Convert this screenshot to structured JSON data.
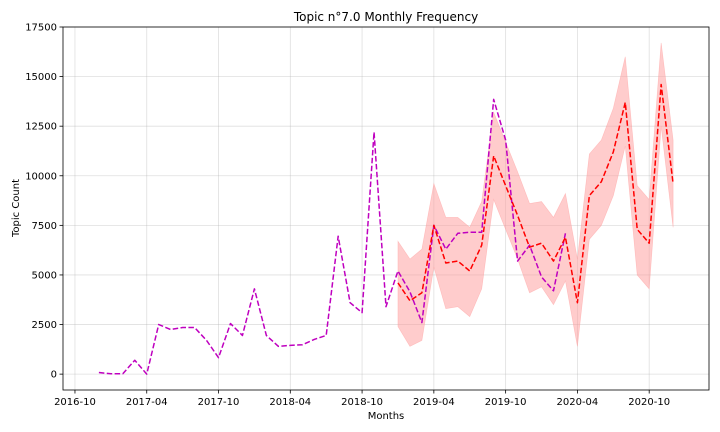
{
  "chart_data": {
    "type": "line",
    "title": "Topic n°7.0 Monthly Frequency",
    "xlabel": "Months",
    "ylabel": "Topic Count",
    "grid": true,
    "xlim": [
      "2016-09-01",
      "2021-03-01"
    ],
    "ylim": [
      -800,
      17500
    ],
    "x_ticks": [
      "2016-10",
      "2017-04",
      "2017-10",
      "2018-04",
      "2018-10",
      "2019-04",
      "2019-10",
      "2020-04",
      "2020-10"
    ],
    "y_ticks": [
      0,
      2500,
      5000,
      7500,
      10000,
      12500,
      15000,
      17500
    ],
    "series": [
      {
        "style": "dashed",
        "color": "#bf00bf",
        "x": [
          "2016-12",
          "2017-01",
          "2017-02",
          "2017-03",
          "2017-04",
          "2017-05",
          "2017-06",
          "2017-07",
          "2017-08",
          "2017-09",
          "2017-10",
          "2017-11",
          "2017-12",
          "2018-01",
          "2018-02",
          "2018-03",
          "2018-04",
          "2018-05",
          "2018-06",
          "2018-07",
          "2018-08",
          "2018-09",
          "2018-10",
          "2018-11",
          "2018-12",
          "2019-01",
          "2019-02",
          "2019-03",
          "2019-04",
          "2019-05",
          "2019-06",
          "2019-07",
          "2019-08",
          "2019-09",
          "2019-10",
          "2019-11",
          "2019-12",
          "2020-01",
          "2020-02",
          "2020-03"
        ],
        "y": [
          80,
          20,
          20,
          700,
          0,
          2500,
          2250,
          2350,
          2350,
          1700,
          830,
          2550,
          1950,
          4300,
          1950,
          1400,
          1450,
          1480,
          1750,
          1950,
          6950,
          3600,
          3100,
          12200,
          3400,
          5200,
          4150,
          2600,
          7500,
          6300,
          7100,
          7150,
          7150,
          13850,
          11800,
          5700,
          6500,
          4900,
          4200,
          7100
        ]
      },
      {
        "style": "dashed",
        "color": "#ff0000",
        "x": [
          "2019-01",
          "2019-02",
          "2019-03",
          "2019-04",
          "2019-05",
          "2019-06",
          "2019-07",
          "2019-08",
          "2019-09",
          "2019-10",
          "2019-11",
          "2019-12",
          "2020-01",
          "2020-02",
          "2020-03",
          "2020-04",
          "2020-05",
          "2020-06",
          "2020-07",
          "2020-08",
          "2020-09",
          "2020-10",
          "2020-11",
          "2020-12"
        ],
        "y": [
          4600,
          3700,
          4100,
          7500,
          5600,
          5700,
          5200,
          6500,
          11000,
          9500,
          8000,
          6400,
          6600,
          5700,
          6900,
          3600,
          9000,
          9700,
          11200,
          13700,
          7300,
          6600,
          14600,
          9600
        ],
        "band_low": [
          2400,
          1400,
          1700,
          5400,
          3300,
          3400,
          2900,
          4300,
          8800,
          7300,
          5800,
          4100,
          4400,
          3500,
          4700,
          1400,
          6800,
          7500,
          9000,
          11500,
          5000,
          4300,
          12500,
          7400
        ],
        "band_high": [
          6700,
          5800,
          6300,
          9600,
          7900,
          7900,
          7400,
          8700,
          13200,
          11700,
          10200,
          8600,
          8700,
          7900,
          9100,
          5800,
          11100,
          11800,
          13400,
          16000,
          9500,
          8800,
          16700,
          11800
        ],
        "band_color": "#ff9999"
      }
    ]
  }
}
